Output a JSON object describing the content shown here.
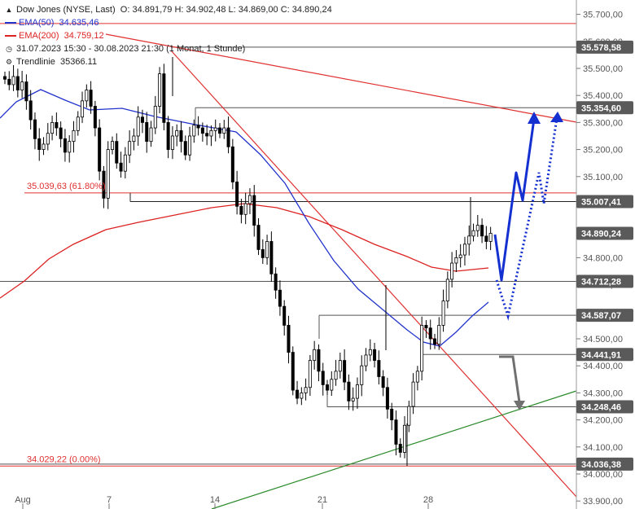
{
  "header": {
    "symbol": "Dow Jones (NYSE, Last)",
    "ohlc": "O: 34.891,79   H: 34.902,48   L: 34.869,00   C: 34.890,24"
  },
  "legend": {
    "ema50_label": "EMA(50)",
    "ema50_value": "34.635,46",
    "ema200_label": "EMA(200)",
    "ema200_value": "34.759,12",
    "period": "31.07.2023 15:30 - 30.08.2023 21:30   (1 Monat, 1 Stunde)",
    "trend_label": "Trendlinie",
    "trend_value": "35366.11"
  },
  "colors": {
    "candle": "#000000",
    "ema50": "#2233cc",
    "ema200": "#dd2222",
    "red_line": "#e03030",
    "trendline": "#2a8a2a",
    "projection": "#1530d0",
    "arrow_down": "#707070",
    "tag_fill": "#5a5a5a"
  },
  "chart_data": {
    "type": "candlestick",
    "xlabels": [
      "Aug",
      "7",
      "14",
      "21",
      "28"
    ],
    "ylim": [
      33900,
      35800
    ],
    "yticks": [
      "35.700,00",
      "35.600,00",
      "35.500,00",
      "35.400,00",
      "35.300,00",
      "35.200,00",
      "35.100,00",
      "35.000,00",
      "34.900,00",
      "34.800,00",
      "34.700,00",
      "34.600,00",
      "34.500,00",
      "34.400,00",
      "34.300,00",
      "34.200,00",
      "34.100,00",
      "34.000,00",
      "33.900,00"
    ],
    "yvalues": [
      35700,
      35600,
      35500,
      35400,
      35300,
      35200,
      35100,
      35000,
      34900,
      34800,
      34700,
      34600,
      34500,
      34400,
      34300,
      34200,
      34100,
      34000,
      33900
    ],
    "level_tags": [
      {
        "label": "35.578,58",
        "value": 35578.58
      },
      {
        "label": "35.354,60",
        "value": 35354.6
      },
      {
        "label": "35.007,41",
        "value": 35007.41
      },
      {
        "label": "34.890,24",
        "value": 34890.24
      },
      {
        "label": "34.712,28",
        "value": 34712.28
      },
      {
        "label": "34.587,07",
        "value": 34587.07
      },
      {
        "label": "34.441,91",
        "value": 34441.91
      },
      {
        "label": "34.248,46",
        "value": 34248.46
      },
      {
        "label": "34.036,38",
        "value": 34036.38
      }
    ],
    "fib_labels": [
      {
        "label": "35.039,63 (61.80%)",
        "value": 35039.63
      },
      {
        "label": "34.029,22 (0.00%)",
        "value": 34029.22
      }
    ],
    "close_series": [
      35460,
      35440,
      35470,
      35420,
      35450,
      35380,
      35310,
      35240,
      35200,
      35220,
      35260,
      35300,
      35280,
      35240,
      35190,
      35230,
      35270,
      35320,
      35380,
      35420,
      35360,
      35280,
      35120,
      35020,
      35200,
      35230,
      35150,
      35120,
      35180,
      35230,
      35250,
      35320,
      35300,
      35230,
      35280,
      35360,
      35480,
      35300,
      35200,
      35250,
      35270,
      35230,
      35180,
      35250,
      35290,
      35280,
      35260,
      35250,
      35270,
      35280,
      35260,
      35280,
      35210,
      35080,
      34990,
      34960,
      35000,
      35030,
      34920,
      34830,
      34800,
      34860,
      34740,
      34680,
      34620,
      34550,
      34450,
      34310,
      34280,
      34300,
      34320,
      34420,
      34460,
      34380,
      34330,
      34310,
      34350,
      34380,
      34420,
      34340,
      34270,
      34280,
      34330,
      34400,
      34440,
      34460,
      34420,
      34360,
      34320,
      34240,
      34200,
      34110,
      34080,
      34180,
      34250,
      34340,
      34380,
      34550,
      34540,
      34500,
      34480,
      34550,
      34640,
      34720,
      34780,
      34800,
      34810,
      34850,
      34880,
      34900,
      34920,
      34880,
      34860,
      34890
    ]
  }
}
